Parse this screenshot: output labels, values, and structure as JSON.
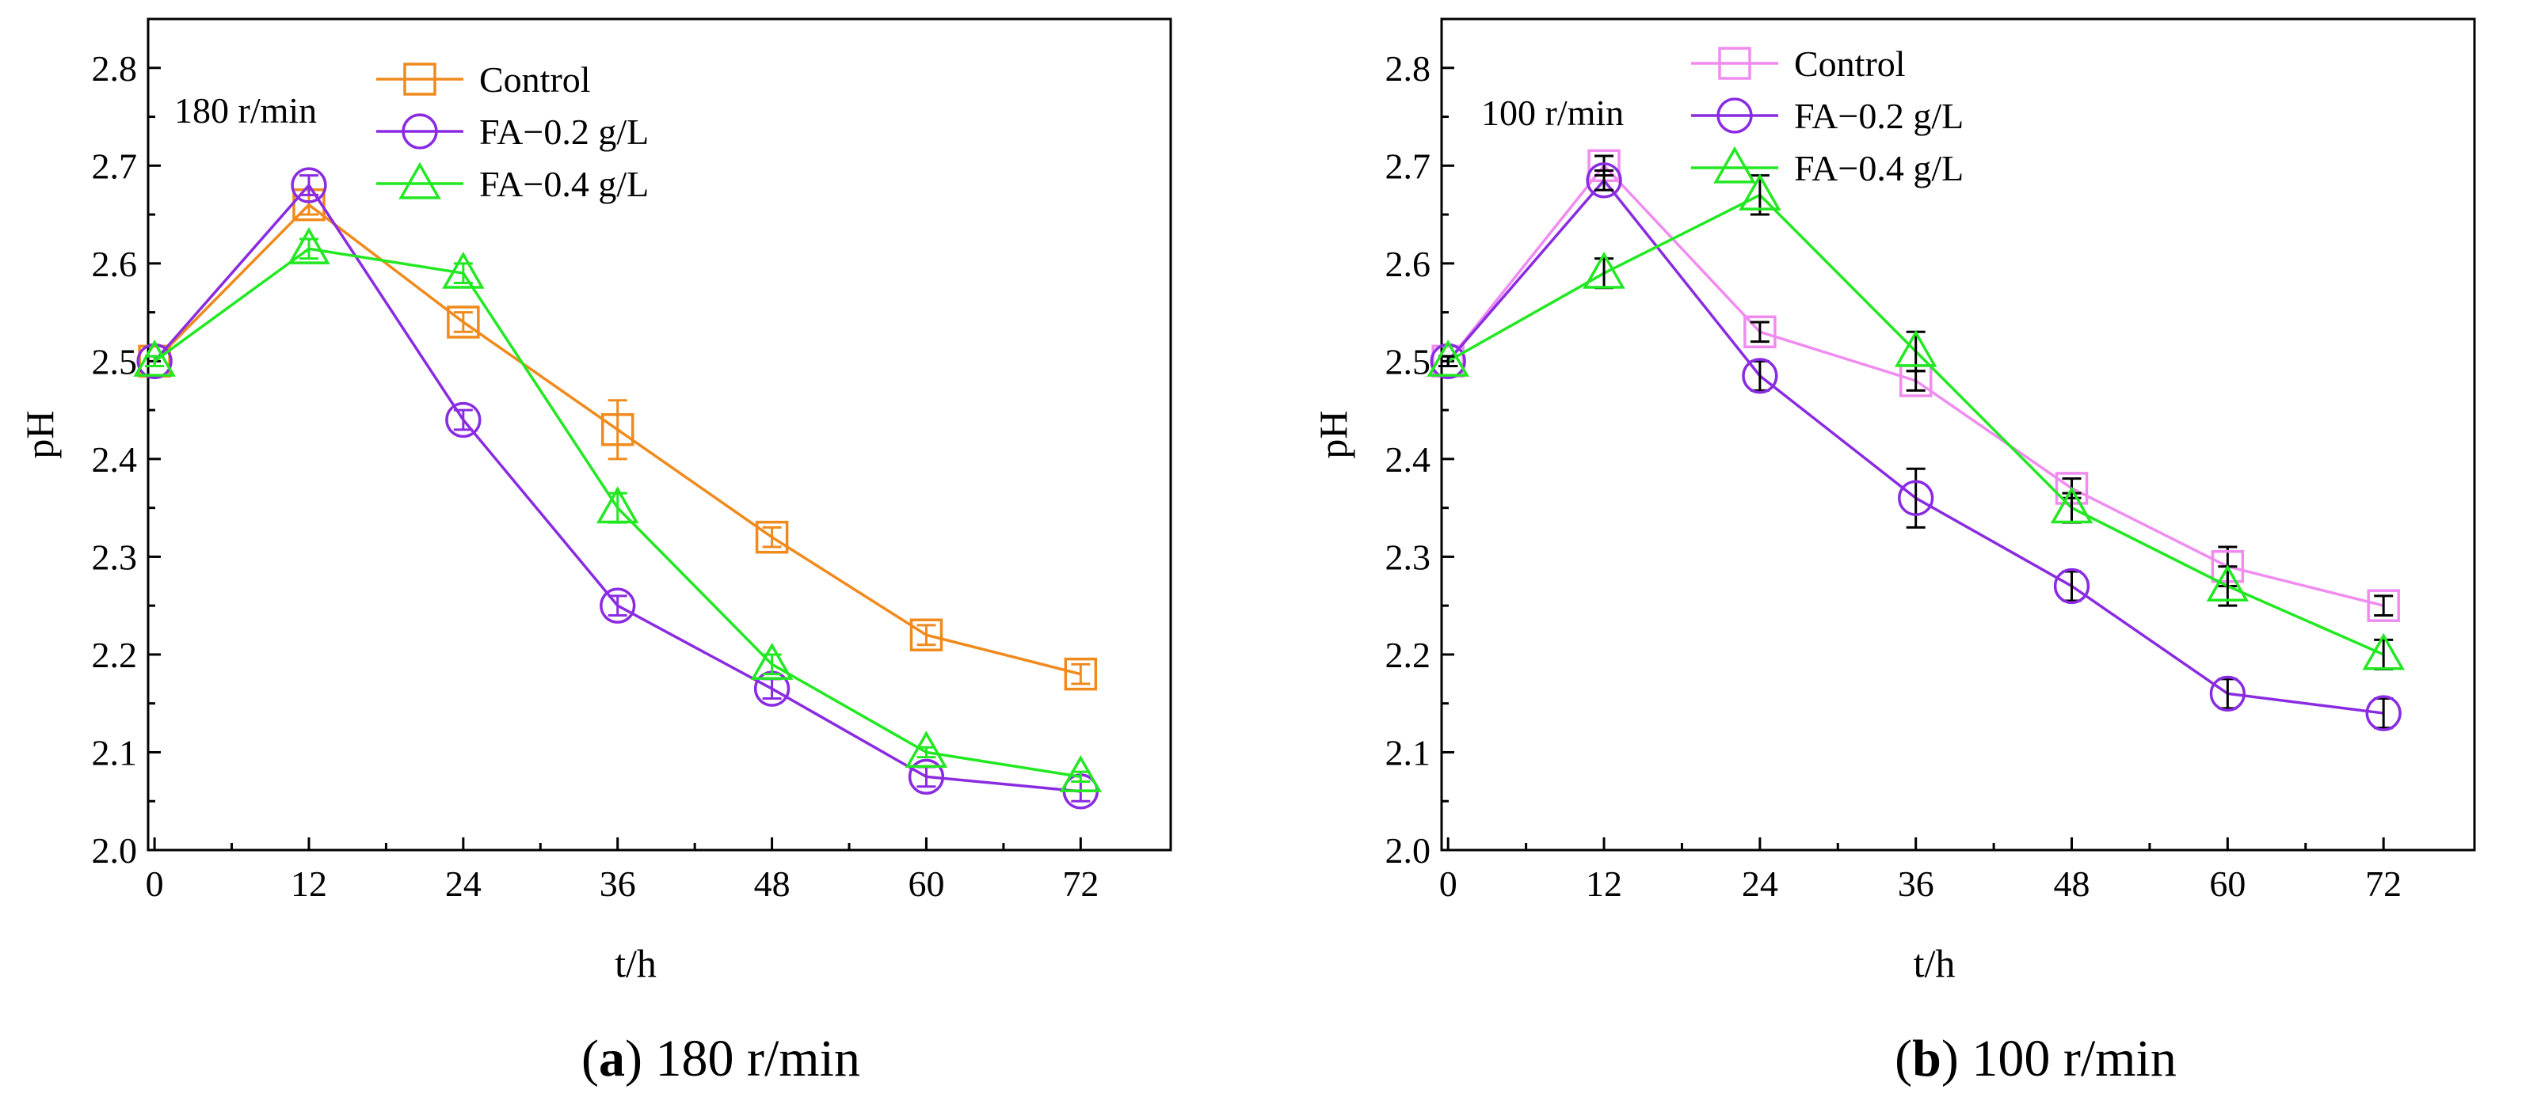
{
  "chart_data": [
    {
      "type": "line",
      "panel_id": "a",
      "annotation": "180 r/min",
      "caption_letter": "a",
      "caption_text": "180 r/min",
      "xlabel": "t/h",
      "ylabel": "pH",
      "x": [
        0,
        12,
        24,
        36,
        48,
        60,
        72
      ],
      "xticks": [
        0,
        12,
        24,
        36,
        48,
        60,
        72
      ],
      "ylim": [
        2.0,
        2.85
      ],
      "yticks": [
        2.0,
        2.1,
        2.2,
        2.3,
        2.4,
        2.5,
        2.6,
        2.7,
        2.8
      ],
      "legend_position": "top-center",
      "series": [
        {
          "name": "Control",
          "marker": "square",
          "color": "#F08A1C",
          "values": [
            2.5,
            2.66,
            2.54,
            2.43,
            2.32,
            2.22,
            2.18
          ],
          "errors": [
            0.005,
            0.01,
            0.01,
            0.03,
            0.01,
            0.01,
            0.01
          ]
        },
        {
          "name": "FA−0.2 g/L",
          "marker": "circle",
          "color": "#8A2BE2",
          "values": [
            2.5,
            2.68,
            2.44,
            2.25,
            2.165,
            2.075,
            2.06
          ],
          "errors": [
            0.005,
            0.01,
            0.01,
            0.01,
            0.01,
            0.01,
            0.01
          ]
        },
        {
          "name": "FA−0.4 g/L",
          "marker": "triangle",
          "color": "#22E822",
          "values": [
            2.5,
            2.615,
            2.59,
            2.35,
            2.19,
            2.1,
            2.075
          ],
          "errors": [
            0.005,
            0.01,
            0.01,
            0.015,
            0.01,
            0.005,
            0.005
          ]
        }
      ]
    },
    {
      "type": "line",
      "panel_id": "b",
      "annotation": "100 r/min",
      "caption_letter": "b",
      "caption_text": "100 r/min",
      "xlabel": "t/h",
      "ylabel": "pH",
      "x": [
        0,
        12,
        24,
        36,
        48,
        60,
        72
      ],
      "xticks": [
        0,
        12,
        24,
        36,
        48,
        60,
        72
      ],
      "ylim": [
        2.0,
        2.85
      ],
      "yticks": [
        2.0,
        2.1,
        2.2,
        2.3,
        2.4,
        2.5,
        2.6,
        2.7,
        2.8
      ],
      "legend_position": "top-center",
      "series": [
        {
          "name": "Control",
          "marker": "square",
          "color": "#F08CF0",
          "values": [
            2.5,
            2.7,
            2.53,
            2.48,
            2.37,
            2.29,
            2.25
          ],
          "errors": [
            0.005,
            0.01,
            0.01,
            0.01,
            0.01,
            0.02,
            0.01
          ]
        },
        {
          "name": "FA−0.2 g/L",
          "marker": "circle",
          "color": "#8A2BE2",
          "values": [
            2.5,
            2.685,
            2.485,
            2.36,
            2.27,
            2.16,
            2.14
          ],
          "errors": [
            0.005,
            0.01,
            0.015,
            0.03,
            0.015,
            0.015,
            0.015
          ]
        },
        {
          "name": "FA−0.4 g/L",
          "marker": "triangle",
          "color": "#22E822",
          "values": [
            2.5,
            2.59,
            2.67,
            2.51,
            2.35,
            2.27,
            2.2
          ],
          "errors": [
            0.005,
            0.015,
            0.02,
            0.02,
            0.015,
            0.02,
            0.015
          ]
        }
      ]
    }
  ]
}
